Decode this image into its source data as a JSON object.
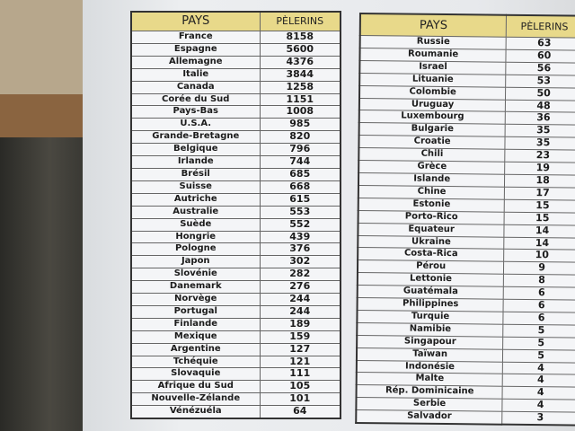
{
  "tables": [
    {
      "headers": [
        "PAYS",
        "PÈLERINS"
      ],
      "rows": [
        [
          "France",
          "8158"
        ],
        [
          "Espagne",
          "5600"
        ],
        [
          "Allemagne",
          "4376"
        ],
        [
          "Italie",
          "3844"
        ],
        [
          "Canada",
          "1258"
        ],
        [
          "Corée du Sud",
          "1151"
        ],
        [
          "Pays-Bas",
          "1008"
        ],
        [
          "U.S.A.",
          "985"
        ],
        [
          "Grande-Bretagne",
          "820"
        ],
        [
          "Belgique",
          "796"
        ],
        [
          "Irlande",
          "744"
        ],
        [
          "Brésil",
          "685"
        ],
        [
          "Suisse",
          "668"
        ],
        [
          "Autriche",
          "615"
        ],
        [
          "Australie",
          "553"
        ],
        [
          "Suède",
          "552"
        ],
        [
          "Hongrie",
          "439"
        ],
        [
          "Pologne",
          "376"
        ],
        [
          "Japon",
          "302"
        ],
        [
          "Slovénie",
          "282"
        ],
        [
          "Danemark",
          "276"
        ],
        [
          "Norvège",
          "244"
        ],
        [
          "Portugal",
          "244"
        ],
        [
          "Finlande",
          "189"
        ],
        [
          "Mexique",
          "159"
        ],
        [
          "Argentine",
          "127"
        ],
        [
          "Tchéquie",
          "121"
        ],
        [
          "Slovaquie",
          "111"
        ],
        [
          "Afrique du Sud",
          "105"
        ],
        [
          "Nouvelle-Zélande",
          "101"
        ],
        [
          "Vénézuéla",
          "64"
        ]
      ]
    },
    {
      "headers": [
        "PAYS",
        "PÈLERINS"
      ],
      "rows": [
        [
          "Russie",
          "63"
        ],
        [
          "Roumanie",
          "60"
        ],
        [
          "Israel",
          "56"
        ],
        [
          "Lituanie",
          "53"
        ],
        [
          "Colombie",
          "50"
        ],
        [
          "Uruguay",
          "48"
        ],
        [
          "Luxembourg",
          "36"
        ],
        [
          "Bulgarie",
          "35"
        ],
        [
          "Croatie",
          "35"
        ],
        [
          "Chili",
          "23"
        ],
        [
          "Grèce",
          "19"
        ],
        [
          "Islande",
          "18"
        ],
        [
          "Chine",
          "17"
        ],
        [
          "Estonie",
          "15"
        ],
        [
          "Porto-Rico",
          "15"
        ],
        [
          "Equateur",
          "14"
        ],
        [
          "Ukraine",
          "14"
        ],
        [
          "Costa-Rica",
          "10"
        ],
        [
          "Pérou",
          "9"
        ],
        [
          "Lettonie",
          "8"
        ],
        [
          "Guatémala",
          "6"
        ],
        [
          "Philippines",
          "6"
        ],
        [
          "Turquie",
          "6"
        ],
        [
          "Namibie",
          "5"
        ],
        [
          "Singapour",
          "5"
        ],
        [
          "Taïwan",
          "5"
        ],
        [
          "Indonésie",
          "4"
        ],
        [
          "Malte",
          "4"
        ],
        [
          "Rép. Dominicaine",
          "4"
        ],
        [
          "Serbie",
          "4"
        ],
        [
          "Salvador",
          "3"
        ]
      ]
    }
  ],
  "colors": {
    "header_fill": "#e8d98a",
    "paper": "#eceef0",
    "border": "#333333"
  }
}
